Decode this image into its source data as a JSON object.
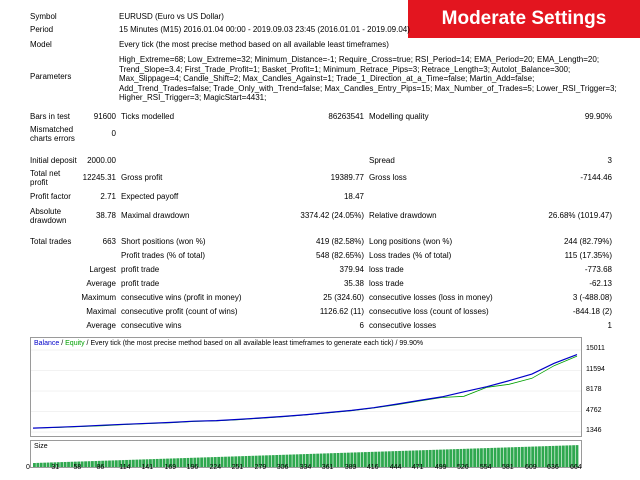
{
  "banner": "Moderate Settings",
  "rows": {
    "symbol": {
      "label": "Symbol",
      "value": "EURUSD (Euro vs US Dollar)"
    },
    "period": {
      "label": "Period",
      "value": "15 Minutes (M15) 2016.01.04 00:00 - 2019.09.03 23:45 (2016.01.01 - 2019.09.04)"
    },
    "model": {
      "label": "Model",
      "value": "Every tick (the most precise method based on all available least timeframes)"
    },
    "parameters": {
      "label": "Parameters",
      "value": "High_Extreme=68; Low_Extreme=32; Minimum_Distance=-1; Require_Cross=true; RSI_Period=14; EMA_Period=20; EMA_Length=20; Trend_Slope=3.4; First_Trade_Profit=1; Basket_Profit=1; Minimum_Retrace_Pips=3; Retrace_Length=3; Autolot_Balance=300; Max_Slippage=4; Candle_Shift=2; Max_Candles_Against=1; Trade_1_Direction_at_a_Time=false; Martin_Add=false; Add_Trend_Trades=false; Trade_Only_with_Trend=false; Max_Candles_Entry_Pips=15; Max_Number_of_Trades=5; Lower_RSI_Trigger=3; Higher_RSI_Trigger=3; MagicStart=4431;"
    }
  },
  "stats": {
    "bars_label": "Bars in test",
    "bars_value": "91600",
    "ticks_label": "Ticks modelled",
    "ticks_value": "86263541",
    "quality_label": "Modelling quality",
    "quality_value": "99.90%",
    "mismatch_label": "Mismatched charts errors",
    "mismatch_value": "0",
    "deposit_label": "Initial deposit",
    "deposit_value": "2000.00",
    "spread_label": "Spread",
    "spread_value": "3",
    "netprofit_label": "Total net profit",
    "netprofit_value": "12245.31",
    "grossprofit_label": "Gross profit",
    "grossprofit_value": "19389.77",
    "grossloss_label": "Gross loss",
    "grossloss_value": "-7144.46",
    "pf_label": "Profit factor",
    "pf_value": "2.71",
    "payoff_label": "Expected payoff",
    "payoff_value": "18.47",
    "absdd_label": "Absolute drawdown",
    "absdd_value": "38.78",
    "maxdd_label": "Maximal drawdown",
    "maxdd_value": "3374.42 (24.05%)",
    "reldd_label": "Relative drawdown",
    "reldd_value": "26.68% (1019.47)",
    "trades_label": "Total trades",
    "trades_value": "663",
    "short_label": "Short positions (won %)",
    "short_value": "419 (82.58%)",
    "long_label": "Long positions (won %)",
    "long_value": "244 (82.79%)",
    "profittrades_label": "Profit trades (% of total)",
    "profittrades_value": "548 (82.65%)",
    "losstrades_label": "Loss trades (% of total)",
    "losstrades_value": "115 (17.35%)",
    "largest_label": "Largest",
    "largest_pt_label": "profit trade",
    "largest_pt_value": "379.94",
    "largest_lt_label": "loss trade",
    "largest_lt_value": "-773.68",
    "average_label": "Average",
    "average_pt_label": "profit trade",
    "average_pt_value": "35.38",
    "average_lt_label": "loss trade",
    "average_lt_value": "-62.13",
    "maximum_label": "Maximum",
    "maximum_cw_label": "consecutive wins (profit in money)",
    "maximum_cw_value": "25 (324.60)",
    "maximum_cl_label": "consecutive losses (loss in money)",
    "maximum_cl_value": "3 (-488.08)",
    "maximal_label": "Maximal",
    "maximal_cp_label": "consecutive profit (count of wins)",
    "maximal_cp_value": "1126.62 (11)",
    "maximal_cl_label": "consecutive loss (count of losses)",
    "maximal_cl_value": "-844.18 (2)",
    "average2_label": "Average",
    "average2_cw_label": "consecutive wins",
    "average2_cw_value": "6",
    "average2_cl_label": "consecutive losses",
    "average2_cl_value": "1"
  },
  "chart_data": {
    "type": "line",
    "header_balance": "Balance",
    "header_sep": " / ",
    "header_equity": "Equity",
    "header_rest": " / Every tick (the most precise method based on all available least timeframes to generate each tick) / 99.90%",
    "size_label": "Size",
    "y_ticks": [
      "15011",
      "11594",
      "8178",
      "4762",
      "1346"
    ],
    "x_ticks": [
      "0",
      "31",
      "58",
      "86",
      "114",
      "141",
      "169",
      "196",
      "224",
      "251",
      "279",
      "306",
      "334",
      "361",
      "389",
      "416",
      "444",
      "471",
      "499",
      "526",
      "554",
      "581",
      "609",
      "636",
      "664"
    ],
    "ylim": [
      1346,
      15011
    ],
    "xlim": [
      0,
      664
    ],
    "series": [
      {
        "name": "Balance",
        "color": "#0000c8",
        "x": [
          0,
          31,
          58,
          86,
          114,
          141,
          169,
          196,
          224,
          251,
          279,
          306,
          334,
          361,
          389,
          416,
          444,
          471,
          499,
          526,
          554,
          581,
          609,
          636,
          664
        ],
        "y": [
          2000,
          2150,
          2300,
          2480,
          2650,
          2800,
          2950,
          3150,
          3250,
          3450,
          3700,
          3950,
          4250,
          4600,
          4950,
          5400,
          6000,
          6600,
          7200,
          8050,
          8900,
          9900,
          11000,
          12800,
          14245
        ]
      },
      {
        "name": "Equity",
        "color": "#00a000",
        "x": [
          0,
          31,
          58,
          86,
          114,
          141,
          169,
          196,
          224,
          251,
          279,
          306,
          334,
          361,
          389,
          416,
          444,
          471,
          499,
          526,
          554,
          581,
          609,
          636,
          664
        ],
        "y": [
          2000,
          2100,
          2250,
          2400,
          2600,
          2750,
          2900,
          3100,
          3200,
          3400,
          3650,
          3900,
          4200,
          4550,
          4900,
          5350,
          5900,
          6500,
          7100,
          7300,
          8800,
          9300,
          10300,
          12400,
          14000
        ]
      }
    ]
  }
}
